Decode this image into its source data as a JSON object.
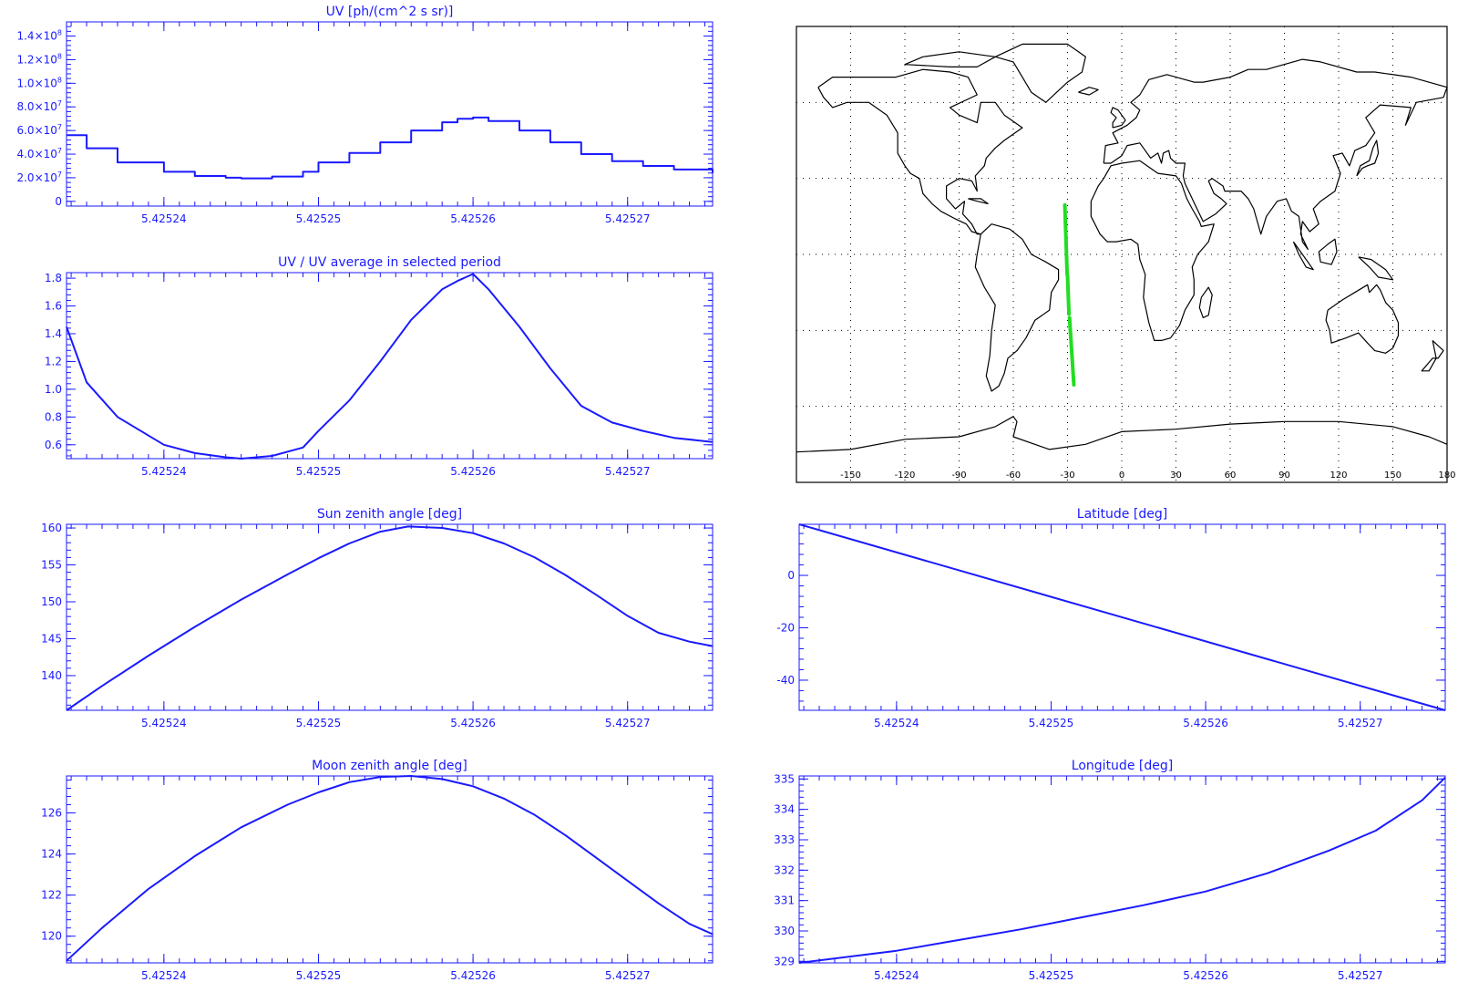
{
  "colors": {
    "plot": "#1a1aff",
    "map_coast": "#000000",
    "map_track": "#22dd22",
    "map_grid": "#000000",
    "background": "#ffffff"
  },
  "chart_data": [
    {
      "id": "uv",
      "type": "line",
      "style": "step",
      "title": "UV [ph/(cm^2 s sr)]",
      "xlabel": "",
      "ylabel": "",
      "x_ticks": [
        "5.42524",
        "5.42525",
        "5.42526",
        "5.42527"
      ],
      "y_ticks": [
        {
          "mant": "0",
          "exp": "",
          "v": 0
        },
        {
          "mant": "2.0×10",
          "exp": "7",
          "v": 20000000
        },
        {
          "mant": "4.0×10",
          "exp": "7",
          "v": 40000000
        },
        {
          "mant": "6.0×10",
          "exp": "7",
          "v": 60000000
        },
        {
          "mant": "8.0×10",
          "exp": "7",
          "v": 80000000
        },
        {
          "mant": "1.0×10",
          "exp": "8",
          "v": 100000000
        },
        {
          "mant": "1.2×10",
          "exp": "8",
          "v": 120000000
        },
        {
          "mant": "1.4×10",
          "exp": "8",
          "v": 140000000
        }
      ],
      "xlim": [
        5.4252337,
        5.4252755
      ],
      "ylim": [
        -4000000,
        152000000
      ],
      "grid": false,
      "x": [
        5.4252337,
        5.425235,
        5.425237,
        5.42524,
        5.425242,
        5.425244,
        5.425245,
        5.425247,
        5.425249,
        5.42525,
        5.425252,
        5.425254,
        5.425256,
        5.425258,
        5.425259,
        5.42526,
        5.425261,
        5.425263,
        5.425265,
        5.425267,
        5.425269,
        5.425271,
        5.425273,
        5.4252755
      ],
      "y": [
        56000000,
        45000000,
        33000000,
        25000000,
        21500000,
        20000000,
        19500000,
        21000000,
        25000000,
        33000000,
        41000000,
        50000000,
        60000000,
        67000000,
        70000000,
        71000000,
        68000000,
        60000000,
        50000000,
        40000000,
        34000000,
        30000000,
        27000000,
        24000000
      ]
    },
    {
      "id": "ratio",
      "type": "line",
      "title": "UV / UV average in selected period",
      "xlabel": "",
      "ylabel": "",
      "x_ticks": [
        "5.42524",
        "5.42525",
        "5.42526",
        "5.42527"
      ],
      "y_ticks": [
        "0.6",
        "0.8",
        "1.0",
        "1.2",
        "1.4",
        "1.6",
        "1.8"
      ],
      "xlim": [
        5.4252337,
        5.4252755
      ],
      "ylim": [
        0.5,
        1.84
      ],
      "grid": false,
      "x": [
        5.4252337,
        5.425235,
        5.425237,
        5.42524,
        5.425242,
        5.425244,
        5.425245,
        5.425247,
        5.425249,
        5.42525,
        5.425252,
        5.425254,
        5.425256,
        5.425258,
        5.425259,
        5.42526,
        5.425261,
        5.425263,
        5.425265,
        5.425267,
        5.425269,
        5.425271,
        5.425273,
        5.4252755
      ],
      "y": [
        1.45,
        1.05,
        0.8,
        0.6,
        0.54,
        0.51,
        0.5,
        0.52,
        0.58,
        0.7,
        0.92,
        1.2,
        1.5,
        1.72,
        1.78,
        1.83,
        1.72,
        1.45,
        1.15,
        0.88,
        0.76,
        0.7,
        0.65,
        0.62
      ]
    },
    {
      "id": "sun",
      "type": "line",
      "title": "Sun zenith angle [deg]",
      "xlabel": "",
      "ylabel": "",
      "x_ticks": [
        "5.42524",
        "5.42525",
        "5.42526",
        "5.42527"
      ],
      "y_ticks": [
        "140",
        "145",
        "150",
        "155",
        "160"
      ],
      "xlim": [
        5.4252337,
        5.4252755
      ],
      "ylim": [
        135.3,
        160.5
      ],
      "grid": false,
      "x": [
        5.4252337,
        5.425236,
        5.425239,
        5.425242,
        5.425245,
        5.425248,
        5.42525,
        5.425252,
        5.425254,
        5.4252558,
        5.425258,
        5.42526,
        5.425262,
        5.425264,
        5.425266,
        5.425268,
        5.42527,
        5.425272,
        5.425274,
        5.4252755
      ],
      "y": [
        135.3,
        138.6,
        142.7,
        146.6,
        150.3,
        153.7,
        155.9,
        157.9,
        159.5,
        160.2,
        160.0,
        159.3,
        157.9,
        156.0,
        153.6,
        150.9,
        148.1,
        145.8,
        144.6,
        144.0
      ]
    },
    {
      "id": "moon",
      "type": "line",
      "title": "Moon zenith angle [deg]",
      "xlabel": "",
      "ylabel": "",
      "x_ticks": [
        "5.42524",
        "5.42525",
        "5.42526",
        "5.42527"
      ],
      "y_ticks": [
        "120",
        "122",
        "124",
        "126"
      ],
      "xlim": [
        5.4252337,
        5.4252755
      ],
      "ylim": [
        118.7,
        127.8
      ],
      "grid": false,
      "x": [
        5.4252337,
        5.425236,
        5.425239,
        5.425242,
        5.425245,
        5.425248,
        5.42525,
        5.425252,
        5.425254,
        5.425256,
        5.425258,
        5.42526,
        5.425262,
        5.425264,
        5.425266,
        5.425268,
        5.42527,
        5.425272,
        5.425274,
        5.4252755
      ],
      "y": [
        118.8,
        120.4,
        122.3,
        123.9,
        125.3,
        126.4,
        127.0,
        127.5,
        127.75,
        127.8,
        127.65,
        127.3,
        126.7,
        125.9,
        124.9,
        123.8,
        122.7,
        121.6,
        120.6,
        120.1
      ]
    },
    {
      "id": "lat",
      "type": "line",
      "title": "Latitude [deg]",
      "xlabel": "",
      "ylabel": "",
      "x_ticks": [
        "5.42524",
        "5.42525",
        "5.42526",
        "5.42527"
      ],
      "y_ticks": [
        "-40",
        "-20",
        "0"
      ],
      "xlim": [
        5.4252337,
        5.4252755
      ],
      "ylim": [
        -51.5,
        19.5
      ],
      "grid": false,
      "x": [
        5.4252337,
        5.4252755
      ],
      "y": [
        19.5,
        -51.5
      ]
    },
    {
      "id": "lon",
      "type": "line",
      "title": "Longitude [deg]",
      "xlabel": "",
      "ylabel": "",
      "x_ticks": [
        "5.42524",
        "5.42525",
        "5.42526",
        "5.42527"
      ],
      "y_ticks": [
        "329",
        "330",
        "331",
        "332",
        "333",
        "334",
        "335"
      ],
      "xlim": [
        5.4252337,
        5.4252755
      ],
      "ylim": [
        328.95,
        335.1
      ],
      "grid": false,
      "x": [
        5.4252337,
        5.42524,
        5.425244,
        5.425248,
        5.425252,
        5.425256,
        5.42526,
        5.425264,
        5.425268,
        5.425271,
        5.425274,
        5.4252755
      ],
      "y": [
        328.95,
        329.35,
        329.7,
        330.05,
        330.45,
        330.85,
        331.3,
        331.9,
        332.65,
        333.3,
        334.3,
        335.05
      ]
    },
    {
      "id": "map",
      "type": "scatter",
      "title": "",
      "x_ticks": [
        "-150",
        "-120",
        "-90",
        "-60",
        "-30",
        "0",
        "30",
        "60",
        "90",
        "120",
        "150",
        "180"
      ],
      "xlim": [
        -180,
        180
      ],
      "ylim": [
        -90,
        90
      ],
      "grid": true,
      "track_segments": [
        {
          "lon": [
            -31.5,
            -30.2
          ],
          "lat": [
            19.5,
            -8
          ]
        },
        {
          "lon": [
            -30.0,
            -29.2
          ],
          "lat": [
            -8.5,
            -23.5
          ]
        },
        {
          "lon": [
            -28.9,
            -26.5
          ],
          "lat": [
            -25,
            -51.5
          ]
        }
      ]
    }
  ]
}
